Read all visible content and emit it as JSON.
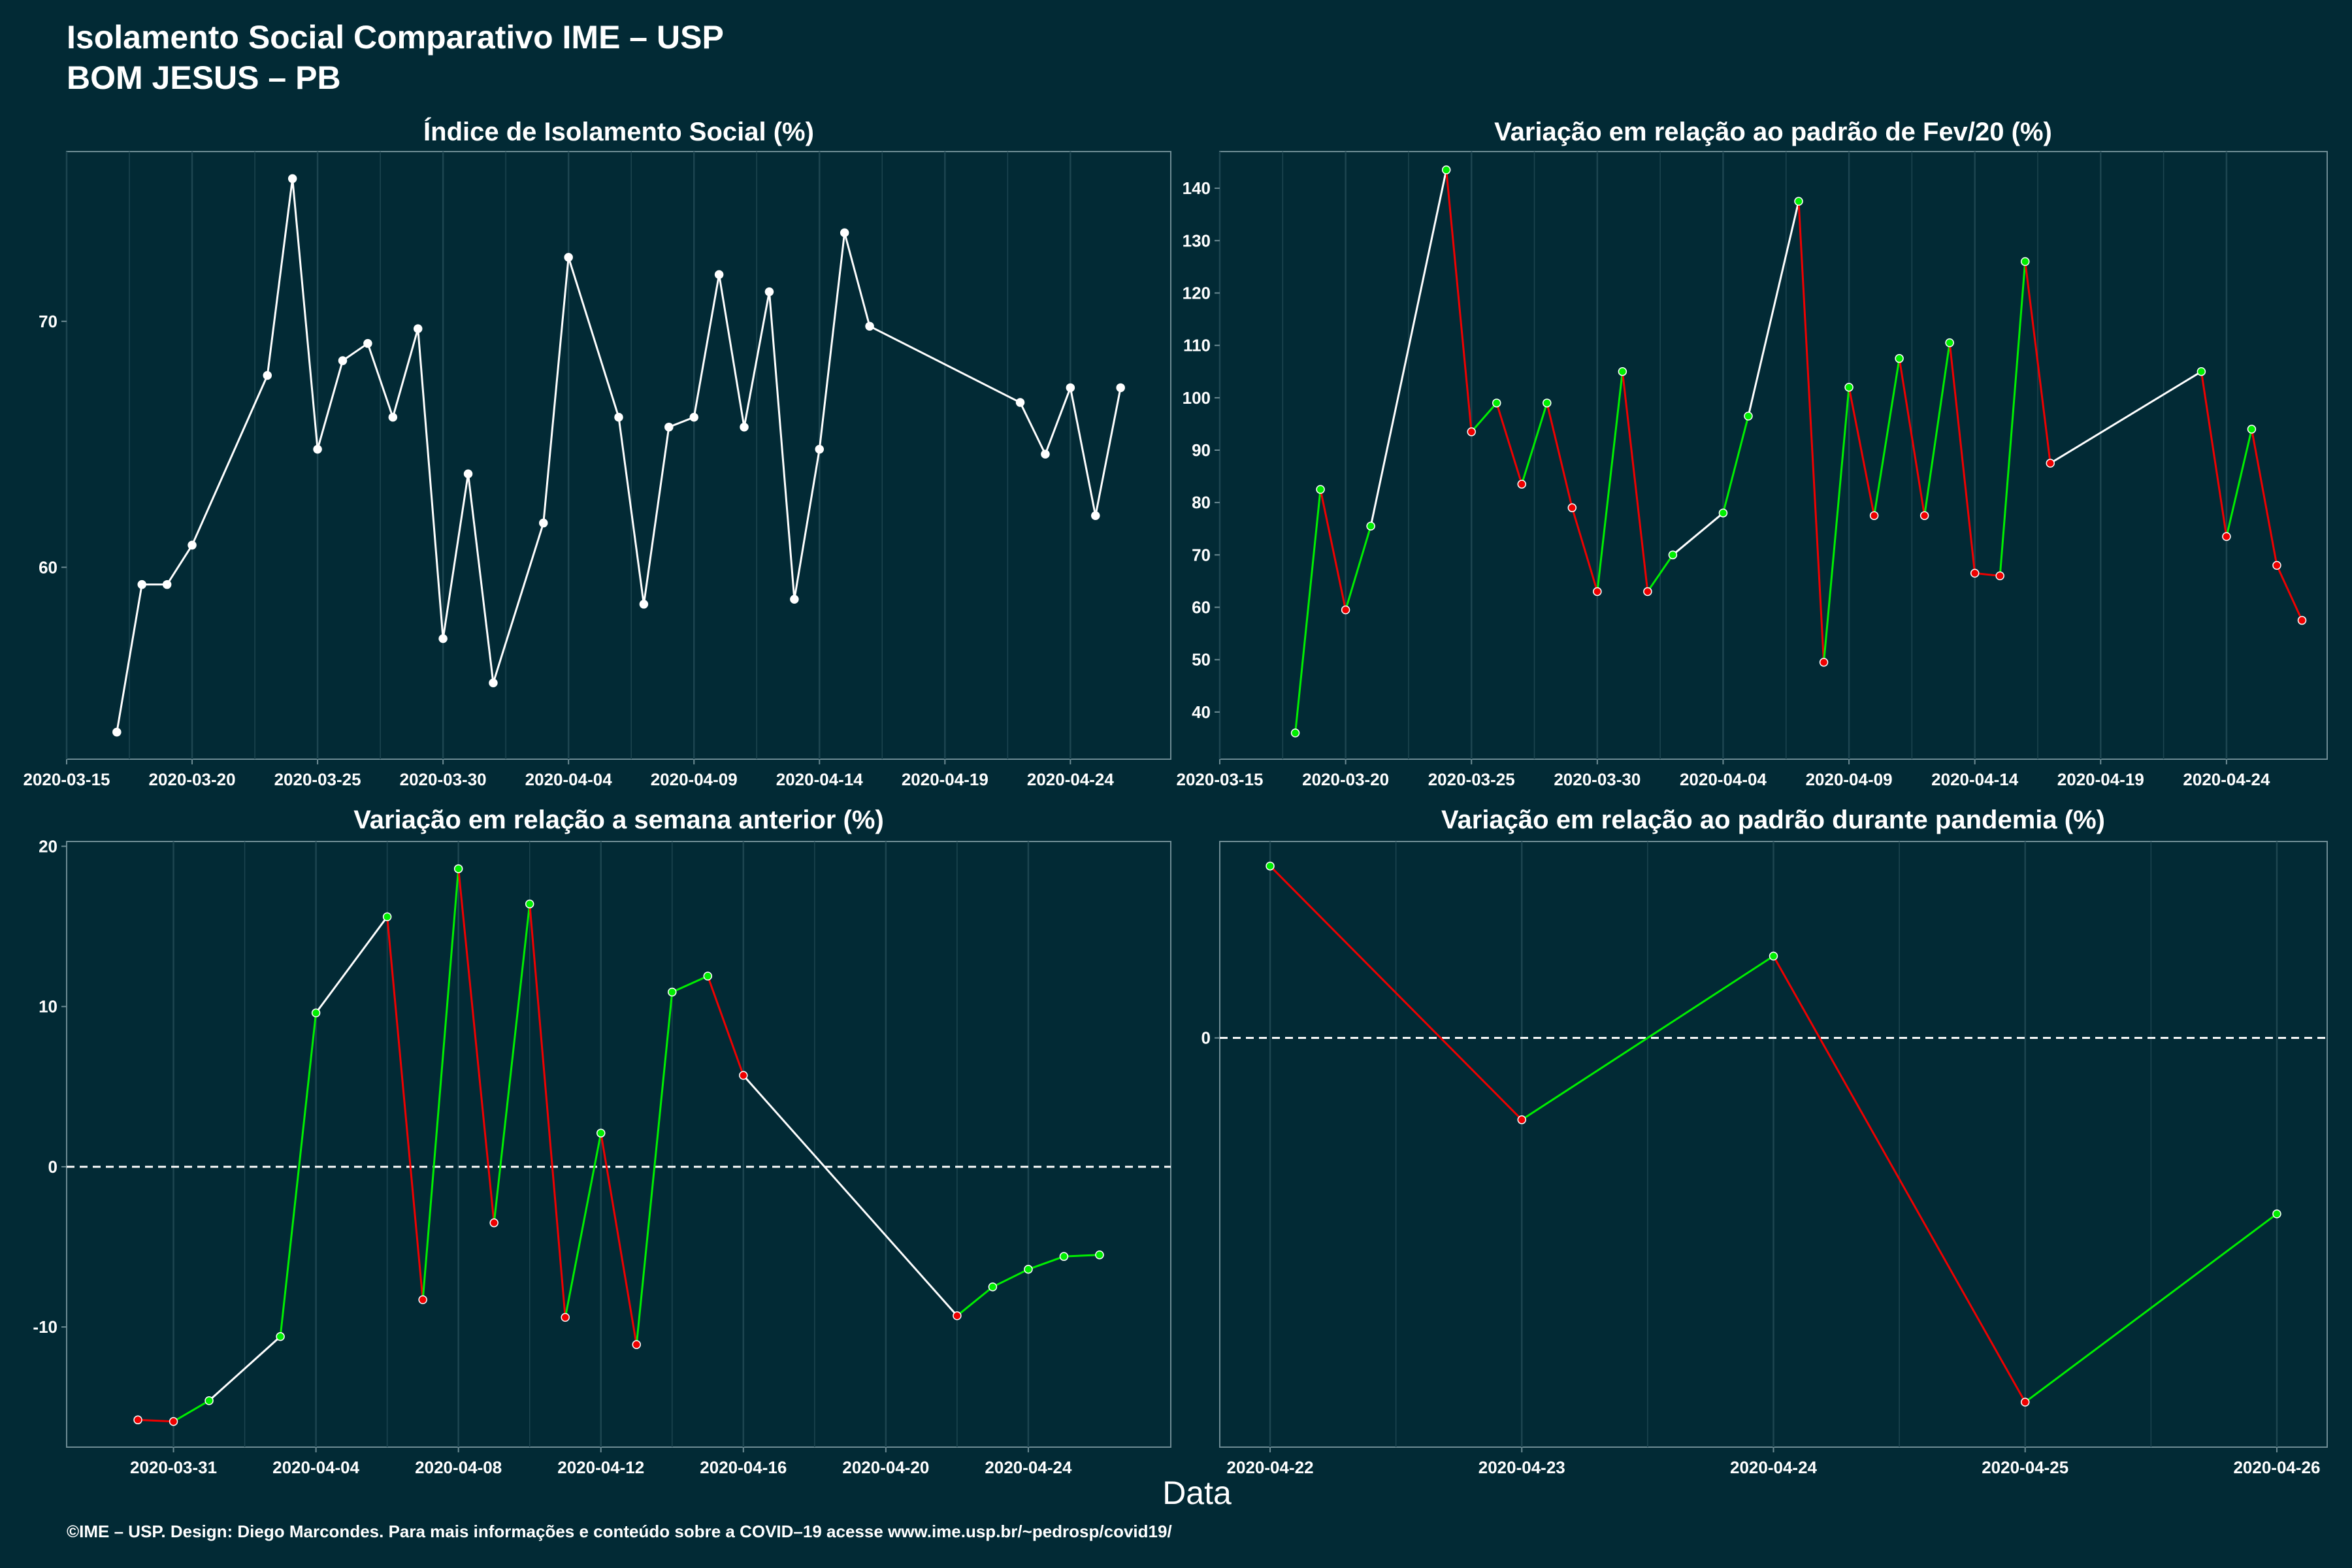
{
  "header": {
    "title_line1": "Isolamento Social Comparativo IME – USP",
    "title_line2": "BOM JESUS – PB"
  },
  "xlabel": "Data",
  "caption": "©IME – USP. Design: Diego Marcondes. Para mais informações e conteúdo sobre a COVID–19 acesse www.ime.usp.br/~pedrosp/covid19/",
  "colors": {
    "background": "#022a35",
    "panel_border": "#6e8c94",
    "grid": "#1d4550",
    "neutral": "#ffffff",
    "increase": "#00ee00",
    "decrease": "#ee0000",
    "zero_line": "#ffffff"
  },
  "chart_data": [
    {
      "id": "isolation-index",
      "type": "line",
      "title": "Índice de Isolamento Social (%)",
      "color_mode": "neutral",
      "x_ticks": [
        "2020-03-15",
        "2020-03-20",
        "2020-03-25",
        "2020-03-30",
        "2020-04-04",
        "2020-04-09",
        "2020-04-14",
        "2020-04-19",
        "2020-04-24"
      ],
      "y_ticks": [
        60,
        70
      ],
      "xlim": [
        "2020-03-15",
        "2020-04-28"
      ],
      "ylim": [
        52.2,
        76.9
      ],
      "x": [
        "2020-03-17",
        "2020-03-18",
        "2020-03-19",
        "2020-03-20",
        "2020-03-23",
        "2020-03-24",
        "2020-03-25",
        "2020-03-26",
        "2020-03-27",
        "2020-03-28",
        "2020-03-29",
        "2020-03-30",
        "2020-03-31",
        "2020-04-01",
        "2020-04-03",
        "2020-04-04",
        "2020-04-06",
        "2020-04-07",
        "2020-04-08",
        "2020-04-09",
        "2020-04-10",
        "2020-04-11",
        "2020-04-12",
        "2020-04-13",
        "2020-04-14",
        "2020-04-15",
        "2020-04-16",
        "2020-04-22",
        "2020-04-23",
        "2020-04-24",
        "2020-04-25",
        "2020-04-26"
      ],
      "y": [
        53.3,
        59.3,
        59.3,
        60.9,
        67.8,
        75.8,
        64.8,
        68.4,
        69.1,
        66.1,
        69.7,
        57.1,
        63.8,
        55.3,
        61.8,
        72.6,
        66.1,
        58.5,
        65.7,
        66.1,
        71.9,
        65.7,
        71.2,
        58.7,
        64.8,
        73.6,
        69.8,
        66.7,
        64.6,
        67.3,
        62.1,
        67.3
      ]
    },
    {
      "id": "variation-feb",
      "type": "line",
      "title": "Variação em relação ao padrão de Fev/20 (%)",
      "color_mode": "by-direction",
      "x_ticks": [
        "2020-03-15",
        "2020-03-20",
        "2020-03-25",
        "2020-03-30",
        "2020-04-04",
        "2020-04-09",
        "2020-04-14",
        "2020-04-19",
        "2020-04-24"
      ],
      "y_ticks": [
        40,
        50,
        60,
        70,
        80,
        90,
        100,
        110,
        120,
        130,
        140
      ],
      "xlim": [
        "2020-03-15",
        "2020-04-28"
      ],
      "ylim": [
        31,
        147
      ],
      "x": [
        "2020-03-18",
        "2020-03-19",
        "2020-03-20",
        "2020-03-21",
        "2020-03-24",
        "2020-03-25",
        "2020-03-26",
        "2020-03-27",
        "2020-03-28",
        "2020-03-29",
        "2020-03-30",
        "2020-03-31",
        "2020-04-01",
        "2020-04-02",
        "2020-04-04",
        "2020-04-05",
        "2020-04-07",
        "2020-04-08",
        "2020-04-09",
        "2020-04-10",
        "2020-04-11",
        "2020-04-12",
        "2020-04-13",
        "2020-04-14",
        "2020-04-15",
        "2020-04-16",
        "2020-04-17",
        "2020-04-23",
        "2020-04-24",
        "2020-04-25",
        "2020-04-26",
        "2020-04-27"
      ],
      "y": [
        36,
        82.5,
        59.5,
        75.5,
        143.5,
        93.5,
        99,
        83.5,
        99,
        79,
        63,
        105,
        63,
        70,
        78,
        96.5,
        137.5,
        49.5,
        102,
        77.5,
        107.5,
        77.5,
        110.5,
        66.5,
        66,
        126,
        87.5,
        105,
        73.5,
        94,
        68,
        57.5
      ]
    },
    {
      "id": "variation-week",
      "type": "line",
      "title": "Variação em relação a semana anterior (%)",
      "color_mode": "by-sign-and-direction",
      "zero_line": true,
      "x_ticks": [
        "2020-03-31",
        "2020-04-04",
        "2020-04-08",
        "2020-04-12",
        "2020-04-16",
        "2020-04-20",
        "2020-04-24"
      ],
      "y_ticks": [
        -10,
        0,
        10,
        20
      ],
      "xlim": [
        "2020-03-28",
        "2020-04-28"
      ],
      "ylim": [
        -17.5,
        20.3
      ],
      "x": [
        "2020-03-30",
        "2020-03-31",
        "2020-04-01",
        "2020-04-03",
        "2020-04-04",
        "2020-04-06",
        "2020-04-07",
        "2020-04-08",
        "2020-04-09",
        "2020-04-10",
        "2020-04-11",
        "2020-04-12",
        "2020-04-13",
        "2020-04-14",
        "2020-04-15",
        "2020-04-16",
        "2020-04-22",
        "2020-04-23",
        "2020-04-24",
        "2020-04-25",
        "2020-04-26"
      ],
      "y": [
        -15.8,
        -15.9,
        -14.6,
        -10.6,
        9.6,
        15.6,
        -8.3,
        18.6,
        -3.5,
        16.4,
        -9.4,
        2.1,
        -11.1,
        10.9,
        11.9,
        5.7,
        -9.3,
        -7.5,
        -6.4,
        -5.6,
        -5.5
      ]
    },
    {
      "id": "variation-pandemic",
      "type": "line",
      "title": "Variação em relação ao padrão durante pandemia (%)",
      "color_mode": "by-direction",
      "zero_line": true,
      "x_ticks": [
        "2020-04-22",
        "2020-04-23",
        "2020-04-24",
        "2020-04-25",
        "2020-04-26"
      ],
      "y_ticks": [
        0
      ],
      "xlim": [
        "2020-04-21.8",
        "2020-04-26.2"
      ],
      "ylim": [
        -10,
        4.8
      ],
      "x": [
        "2020-04-22",
        "2020-04-23",
        "2020-04-24",
        "2020-04-25",
        "2020-04-26"
      ],
      "y": [
        4.2,
        -2.0,
        2.0,
        -8.9,
        -4.3
      ]
    }
  ]
}
